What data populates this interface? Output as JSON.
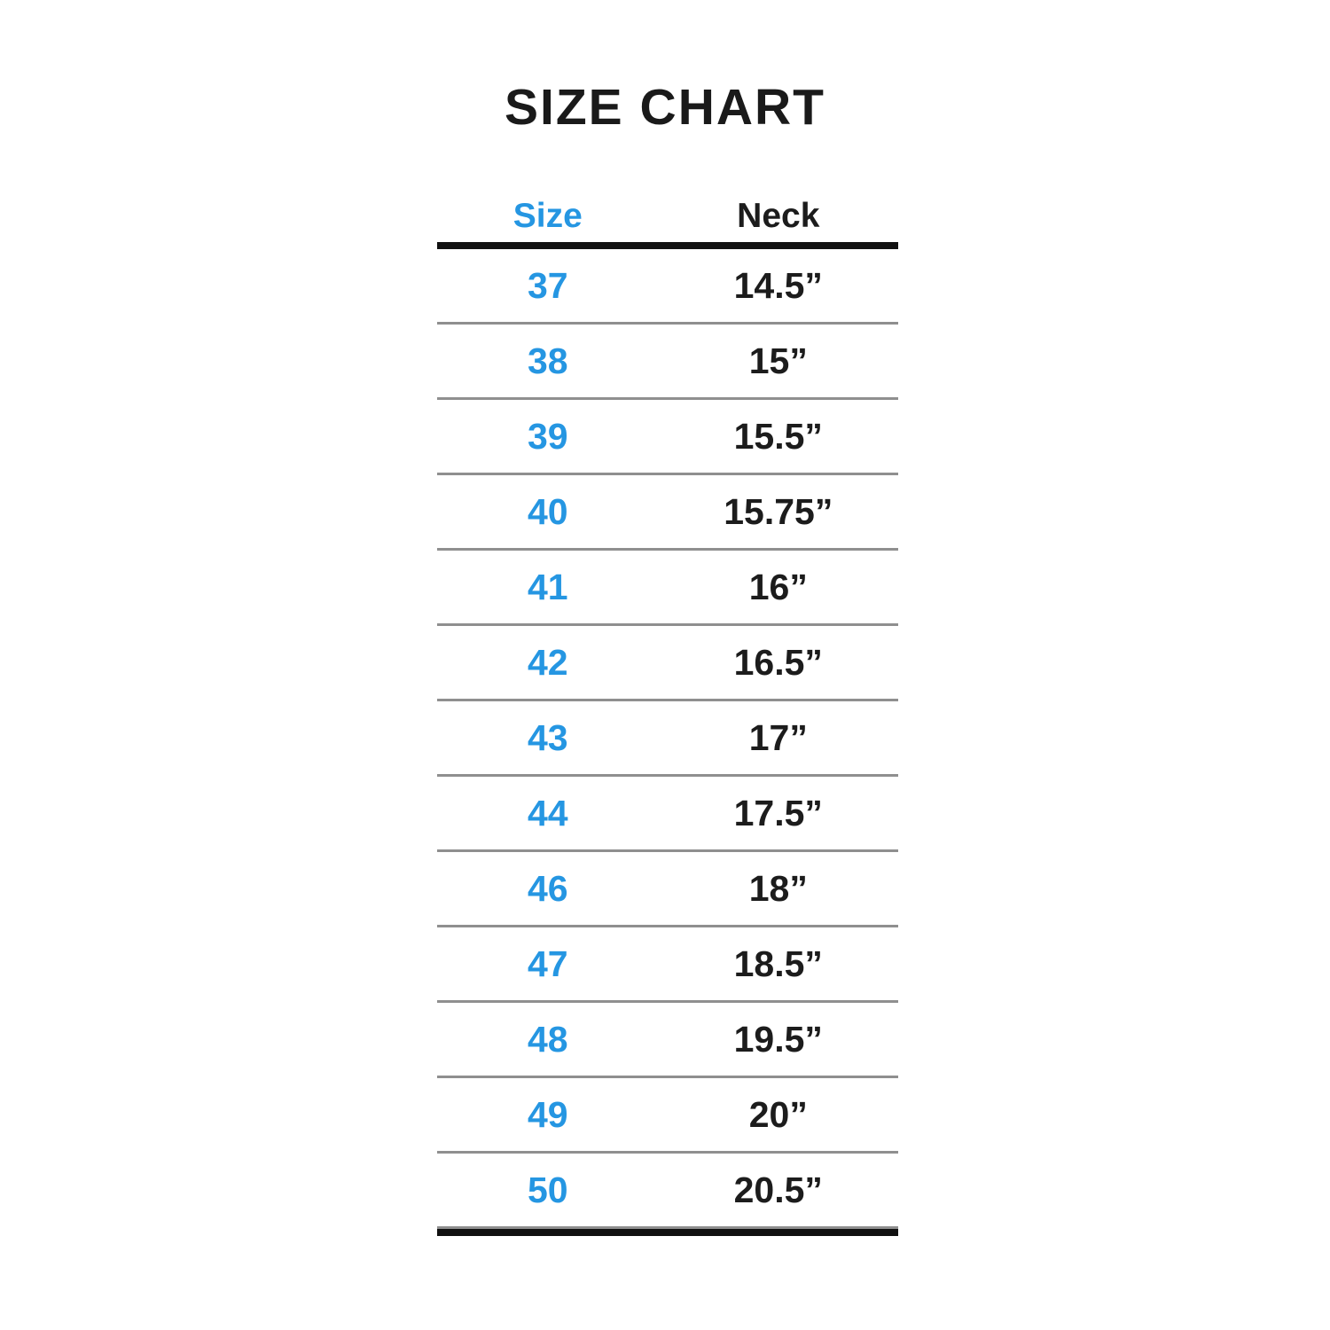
{
  "title": "SIZE CHART",
  "colors": {
    "accent_blue": "#2596e2",
    "text_black": "#1c1c1c",
    "divider_gray": "#8f8f8f",
    "rule_black": "#111111",
    "background": "#ffffff"
  },
  "table": {
    "columns": [
      {
        "label": "Size"
      },
      {
        "label": "Neck"
      }
    ],
    "rows": [
      {
        "size": "37",
        "neck": "14.5”"
      },
      {
        "size": "38",
        "neck": "15”"
      },
      {
        "size": "39",
        "neck": "15.5”"
      },
      {
        "size": "40",
        "neck": "15.75”"
      },
      {
        "size": "41",
        "neck": "16”"
      },
      {
        "size": "42",
        "neck": "16.5”"
      },
      {
        "size": "43",
        "neck": "17”"
      },
      {
        "size": "44",
        "neck": "17.5”"
      },
      {
        "size": "46",
        "neck": "18”"
      },
      {
        "size": "47",
        "neck": "18.5”"
      },
      {
        "size": "48",
        "neck": "19.5”"
      },
      {
        "size": "49",
        "neck": "20”"
      },
      {
        "size": "50",
        "neck": "20.5”"
      }
    ]
  },
  "chart_data": {
    "type": "table",
    "title": "SIZE CHART",
    "columns": [
      "Size",
      "Neck"
    ],
    "rows": [
      [
        "37",
        "14.5”"
      ],
      [
        "38",
        "15”"
      ],
      [
        "39",
        "15.5”"
      ],
      [
        "40",
        "15.75”"
      ],
      [
        "41",
        "16”"
      ],
      [
        "42",
        "16.5”"
      ],
      [
        "43",
        "17”"
      ],
      [
        "44",
        "17.5”"
      ],
      [
        "46",
        "18”"
      ],
      [
        "47",
        "18.5”"
      ],
      [
        "48",
        "19.5”"
      ],
      [
        "49",
        "20”"
      ],
      [
        "50",
        "20.5”"
      ]
    ]
  }
}
